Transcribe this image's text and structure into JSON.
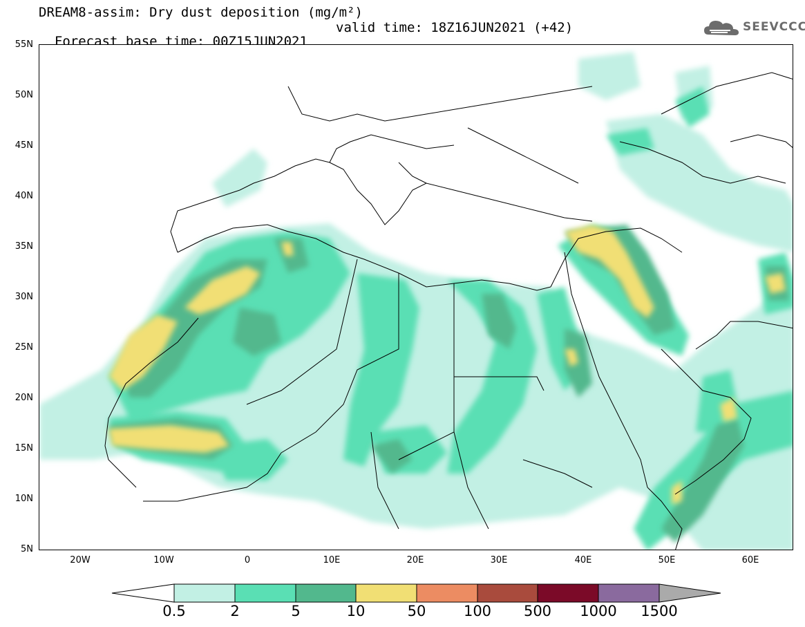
{
  "header": {
    "title_line_1": "DREAM8-assim: Dry dust deposition (mg/m²)",
    "base_time": "Forecast base time: 00Z15JUN2021",
    "valid_time": "valid time: 18Z16JUN2021 (+42)"
  },
  "logo": {
    "text": "SEEVCCC",
    "icon": "cloud-icon",
    "color": "#6c6c6c"
  },
  "map": {
    "lat_labels": [
      "55N",
      "50N",
      "45N",
      "40N",
      "35N",
      "30N",
      "25N",
      "20N",
      "15N",
      "10N",
      "5N"
    ],
    "lon_labels": [
      "20W",
      "10W",
      "0",
      "10E",
      "20E",
      "30E",
      "40E",
      "50E",
      "60E"
    ]
  },
  "legend": {
    "labels": [
      "0.5",
      "2",
      "5",
      "10",
      "50",
      "100",
      "500",
      "1000",
      "1500"
    ],
    "colors": [
      "#ffffff",
      "#c2f0e4",
      "#5adfb4",
      "#52b88d",
      "#f1df74",
      "#ec8c62",
      "#a94b3d",
      "#7b0a28",
      "#8a6a9e",
      "#aaaaaa"
    ]
  }
}
